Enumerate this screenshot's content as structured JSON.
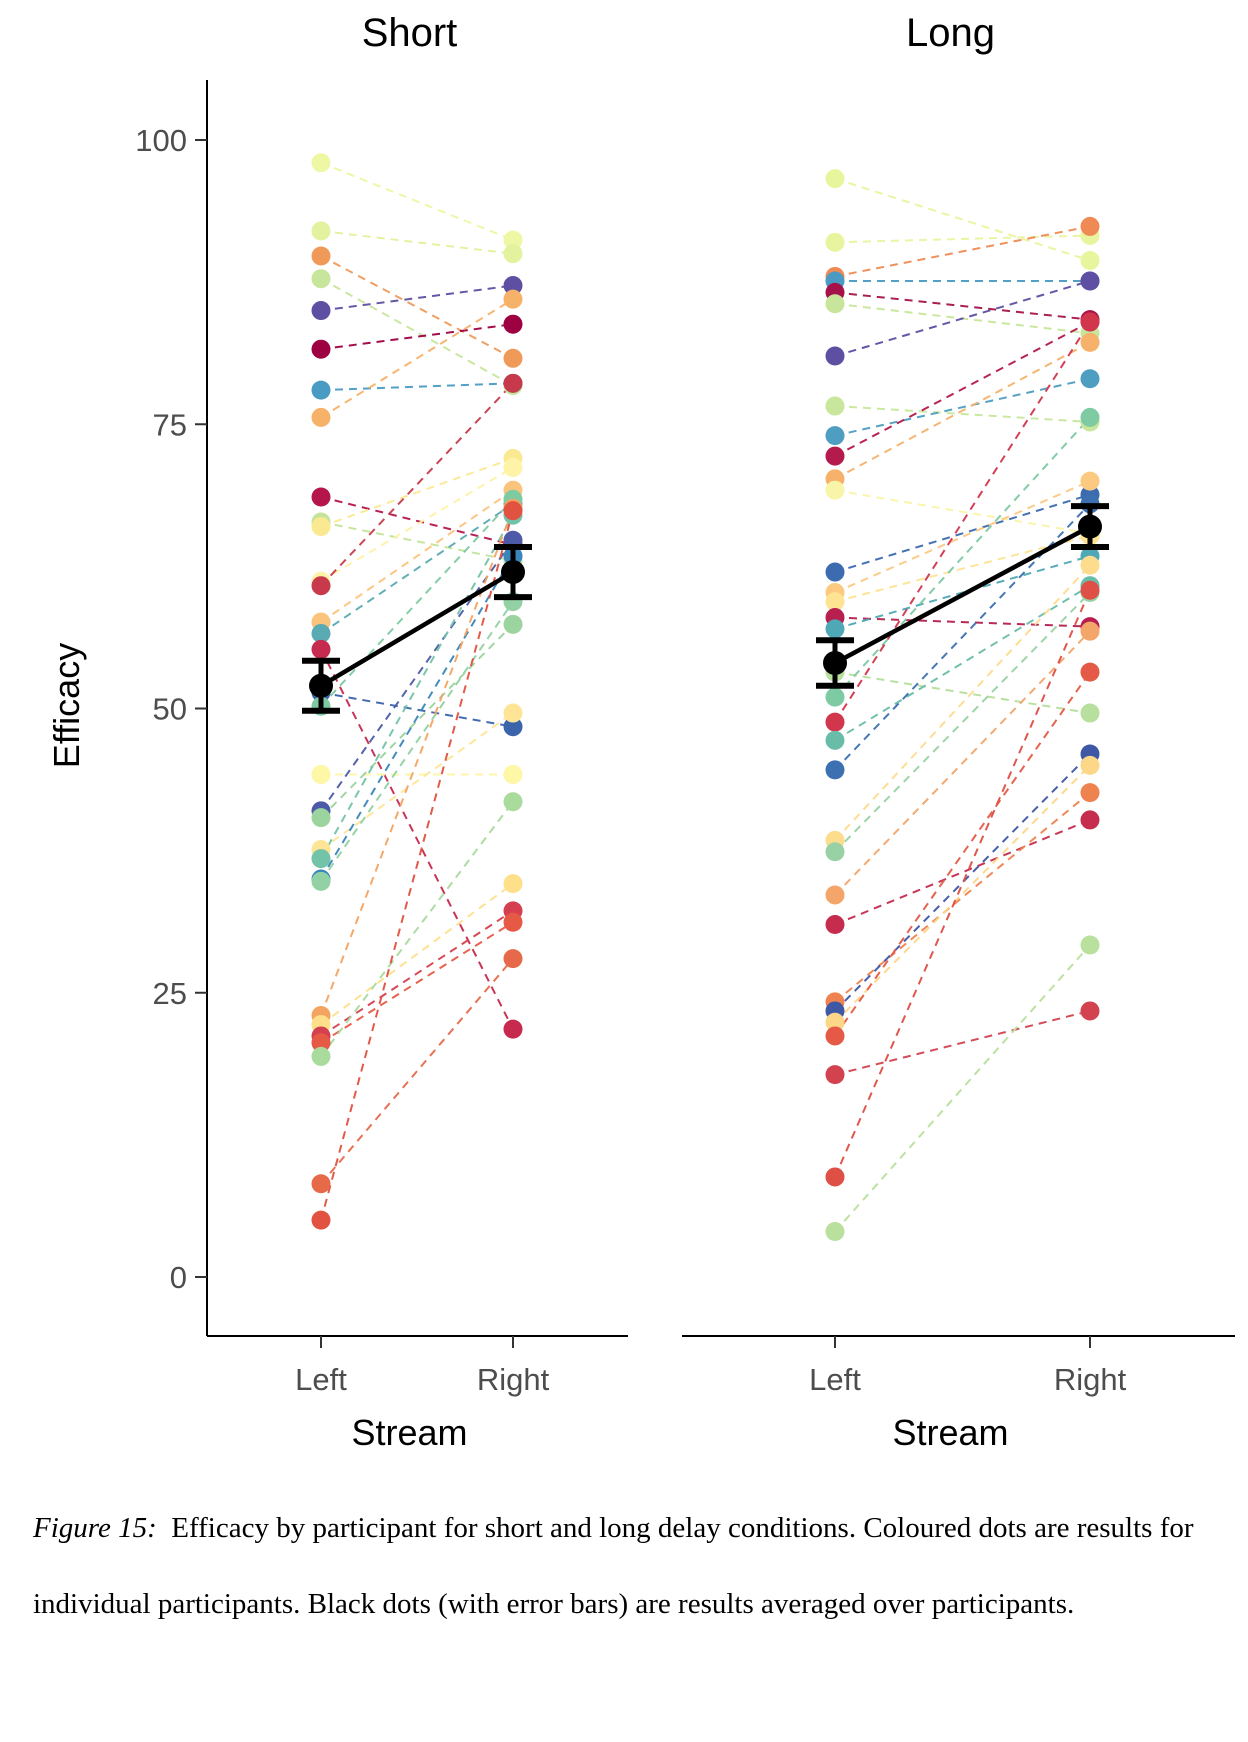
{
  "chart_data": {
    "type": "scatter",
    "ylabel": "Efficacy",
    "xlabel": "Stream",
    "categories": [
      "Left",
      "Right"
    ],
    "ylim": [
      -5,
      105
    ],
    "yticks": [
      0,
      25,
      50,
      75,
      100
    ],
    "grid": false,
    "panels": [
      {
        "title": "Short",
        "mean": {
          "Left": 52.0,
          "Right": 62.0
        },
        "error": {
          "Left": 2.2,
          "Right": 2.2
        },
        "participants": [
          {
            "left": 98.0,
            "right": 91.2,
            "color": "#eef7a3"
          },
          {
            "left": 92.0,
            "right": 90.0,
            "color": "#e2f29e"
          },
          {
            "left": 89.8,
            "right": 80.8,
            "color": "#f09a5a"
          },
          {
            "left": 87.8,
            "right": 78.4,
            "color": "#c8e69b"
          },
          {
            "left": 85.0,
            "right": 87.2,
            "color": "#5e4fa2"
          },
          {
            "left": 81.6,
            "right": 83.8,
            "color": "#9e0142"
          },
          {
            "left": 78.0,
            "right": 78.6,
            "color": "#4a9bc3"
          },
          {
            "left": 75.6,
            "right": 86.0,
            "color": "#f7b26a"
          },
          {
            "left": 68.6,
            "right": 64.4,
            "color": "#b4164b"
          },
          {
            "left": 66.4,
            "right": 63.0,
            "color": "#c3e49a"
          },
          {
            "left": 66.0,
            "right": 72.0,
            "color": "#fbe992"
          },
          {
            "left": 61.2,
            "right": 71.2,
            "color": "#fef3a6"
          },
          {
            "left": 60.8,
            "right": 78.6,
            "color": "#c73a4b"
          },
          {
            "left": 57.6,
            "right": 69.2,
            "color": "#fbc47c"
          },
          {
            "left": 56.6,
            "right": 68.0,
            "color": "#5aaab3"
          },
          {
            "left": 55.2,
            "right": 21.8,
            "color": "#c62a4e"
          },
          {
            "left": 51.4,
            "right": 48.4,
            "color": "#3c64ab"
          },
          {
            "left": 50.2,
            "right": 68.4,
            "color": "#7ecba2"
          },
          {
            "left": 44.2,
            "right": 44.2,
            "color": "#fdf7a6"
          },
          {
            "left": 41.0,
            "right": 64.8,
            "color": "#4c5aa8"
          },
          {
            "left": 40.4,
            "right": 57.4,
            "color": "#9bd49e"
          },
          {
            "left": 37.6,
            "right": 49.6,
            "color": "#fee596"
          },
          {
            "left": 36.8,
            "right": 67.0,
            "color": "#72c3a7"
          },
          {
            "left": 35.0,
            "right": 63.4,
            "color": "#3a86bb"
          },
          {
            "left": 34.8,
            "right": 59.4,
            "color": "#92d1a3"
          },
          {
            "left": 23.0,
            "right": 67.6,
            "color": "#f4a461"
          },
          {
            "left": 22.2,
            "right": 34.6,
            "color": "#fee08b"
          },
          {
            "left": 21.2,
            "right": 32.2,
            "color": "#d4404f"
          },
          {
            "left": 20.6,
            "right": 31.2,
            "color": "#e65a45"
          },
          {
            "left": 19.4,
            "right": 41.8,
            "color": "#a8db9c"
          },
          {
            "left": 8.2,
            "right": 28.0,
            "color": "#e66a4a"
          },
          {
            "left": 5.0,
            "right": 67.4,
            "color": "#e15240"
          }
        ]
      },
      {
        "title": "Long",
        "mean": {
          "Left": 54.0,
          "Right": 66.0
        },
        "error": {
          "Left": 2.0,
          "Right": 1.8
        },
        "participants": [
          {
            "left": 96.6,
            "right": 89.4,
            "color": "#e7f59c"
          },
          {
            "left": 91.0,
            "right": 91.6,
            "color": "#e8f59e"
          },
          {
            "left": 88.0,
            "right": 92.4,
            "color": "#f08a54"
          },
          {
            "left": 87.6,
            "right": 87.6,
            "color": "#4a9bc3"
          },
          {
            "left": 86.6,
            "right": 84.2,
            "color": "#a5124a"
          },
          {
            "left": 85.6,
            "right": 83.0,
            "color": "#c8e69b"
          },
          {
            "left": 81.0,
            "right": 87.6,
            "color": "#5e4fa2"
          },
          {
            "left": 76.6,
            "right": 75.2,
            "color": "#c9e79c"
          },
          {
            "left": 74.0,
            "right": 79.0,
            "color": "#4d9ec1"
          },
          {
            "left": 72.2,
            "right": 84.0,
            "color": "#b41a4c"
          },
          {
            "left": 70.2,
            "right": 82.2,
            "color": "#f6b26b"
          },
          {
            "left": 69.2,
            "right": 65.4,
            "color": "#f9f5a8"
          },
          {
            "left": 62.0,
            "right": 68.8,
            "color": "#3d6bb0"
          },
          {
            "left": 60.2,
            "right": 70.0,
            "color": "#fcc981"
          },
          {
            "left": 59.4,
            "right": 65.2,
            "color": "#fde392"
          },
          {
            "left": 58.0,
            "right": 57.2,
            "color": "#b61f4e"
          },
          {
            "left": 57.0,
            "right": 63.4,
            "color": "#4fa8b5"
          },
          {
            "left": 53.2,
            "right": 49.6,
            "color": "#b7df9d"
          },
          {
            "left": 51.0,
            "right": 75.6,
            "color": "#7dcaa3"
          },
          {
            "left": 48.8,
            "right": 84.0,
            "color": "#d1364d"
          },
          {
            "left": 47.2,
            "right": 60.8,
            "color": "#69bda8"
          },
          {
            "left": 44.6,
            "right": 68.0,
            "color": "#3c70b1"
          },
          {
            "left": 38.4,
            "right": 62.6,
            "color": "#fedc8e"
          },
          {
            "left": 37.4,
            "right": 60.2,
            "color": "#98d2a4"
          },
          {
            "left": 33.6,
            "right": 56.8,
            "color": "#f3a56a"
          },
          {
            "left": 31.0,
            "right": 40.2,
            "color": "#c52c4e"
          },
          {
            "left": 24.2,
            "right": 42.6,
            "color": "#ef8350"
          },
          {
            "left": 23.4,
            "right": 46.0,
            "color": "#3f58a6"
          },
          {
            "left": 22.4,
            "right": 45.0,
            "color": "#fdd788"
          },
          {
            "left": 21.2,
            "right": 53.2,
            "color": "#e55a46"
          },
          {
            "left": 17.8,
            "right": 23.4,
            "color": "#d2434f"
          },
          {
            "left": 8.8,
            "right": 60.4,
            "color": "#de4f45"
          },
          {
            "left": 4.0,
            "right": 29.2,
            "color": "#b9e09c"
          }
        ]
      }
    ]
  },
  "caption": {
    "label": "Figure 15:",
    "text": "Efficacy by participant for short and long delay conditions.  Coloured dots are results for individual participants.  Black dots (with error bars) are results averaged over participants."
  }
}
